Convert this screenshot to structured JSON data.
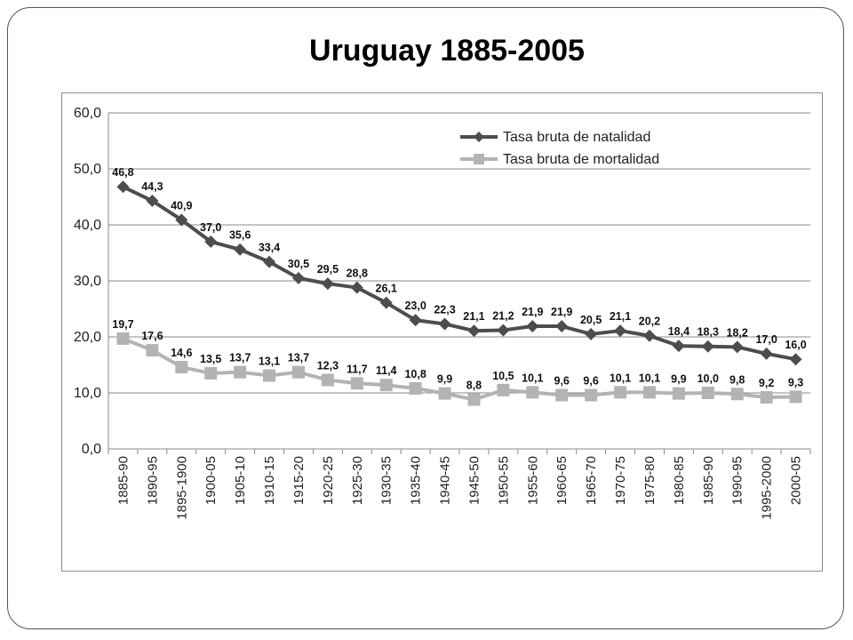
{
  "slide": {
    "title": "Uruguay 1885-2005"
  },
  "chart_data": {
    "type": "line",
    "title": "",
    "xlabel": "",
    "ylabel": "",
    "ylim": [
      0,
      60
    ],
    "yticks": [
      "0,0",
      "10,0",
      "20,0",
      "30,0",
      "40,0",
      "50,0",
      "60,0"
    ],
    "grid": true,
    "legend": "top-right",
    "categories": [
      "1885-90",
      "1890-95",
      "1895-1900",
      "1900-05",
      "1905-10",
      "1910-15",
      "1915-20",
      "1920-25",
      "1925-30",
      "1930-35",
      "1935-40",
      "1940-45",
      "1945-50",
      "1950-55",
      "1955-60",
      "1960-65",
      "1965-70",
      "1970-75",
      "1975-80",
      "1980-85",
      "1985-90",
      "1990-95",
      "1995-2000",
      "2000-05"
    ],
    "series": [
      {
        "name": "Tasa bruta de natalidad",
        "color": "#4d4d4d",
        "marker": "diamond",
        "values": [
          46.8,
          44.3,
          40.9,
          37.0,
          35.6,
          33.4,
          30.5,
          29.5,
          28.8,
          26.1,
          23.0,
          22.3,
          21.1,
          21.2,
          21.9,
          21.9,
          20.5,
          21.1,
          20.2,
          18.4,
          18.3,
          18.2,
          17.0,
          16.0
        ],
        "labels": [
          "46,8",
          "44,3",
          "40,9",
          "37,0",
          "35,6",
          "33,4",
          "30,5",
          "29,5",
          "28,8",
          "26,1",
          "23,0",
          "22,3",
          "21,1",
          "21,2",
          "21,9",
          "21,9",
          "20,5",
          "21,1",
          "20,2",
          "18,4",
          "18,3",
          "18,2",
          "17,0",
          "16,0"
        ]
      },
      {
        "name": "Tasa bruta de mortalidad",
        "color": "#b3b3b3",
        "marker": "square",
        "values": [
          19.7,
          17.6,
          14.6,
          13.5,
          13.7,
          13.1,
          13.7,
          12.3,
          11.7,
          11.4,
          10.8,
          9.9,
          8.8,
          10.5,
          10.1,
          9.6,
          9.6,
          10.1,
          10.1,
          9.9,
          10.0,
          9.8,
          9.2,
          9.3
        ],
        "labels": [
          "19,7",
          "17,6",
          "14,6",
          "13,5",
          "13,7",
          "13,1",
          "13,7",
          "12,3",
          "11,7",
          "11,4",
          "10,8",
          "9,9",
          "8,8",
          "10,5",
          "10,1",
          "9,6",
          "9,6",
          "10,1",
          "10,1",
          "9,9",
          "10,0",
          "9,8",
          "9,2",
          "9,3"
        ]
      }
    ]
  }
}
